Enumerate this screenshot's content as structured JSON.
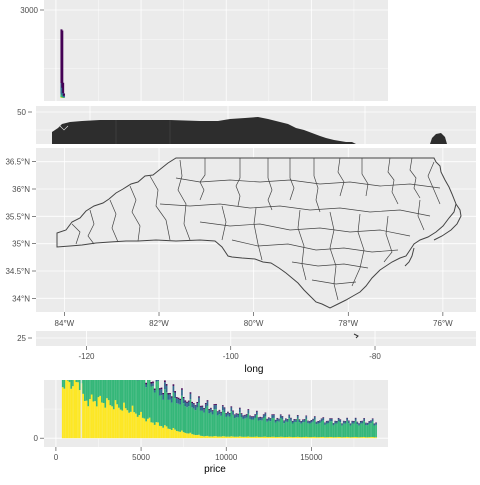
{
  "chart_data": [
    {
      "type": "bar",
      "y_ticks": [
        3000
      ],
      "bins": [
        {
          "x": 325,
          "counts": [
            30,
            110,
            370,
            1830
          ]
        },
        {
          "x": 375,
          "counts": [
            20,
            80,
            250,
            1950
          ]
        },
        {
          "x": 425,
          "counts": [
            10,
            40,
            120,
            350
          ]
        },
        {
          "x": 475,
          "counts": [
            5,
            20,
            50,
            80
          ]
        }
      ],
      "xlim": [
        -700,
        19500
      ],
      "ylim": [
        0,
        3000
      ],
      "colors": [
        "#fde725",
        "#35b779",
        "#31688e",
        "#440154"
      ],
      "grid": true
    },
    {
      "type": "map",
      "y_ticks": [
        50
      ],
      "ylim": [
        44,
        52
      ],
      "grid": true
    },
    {
      "type": "map",
      "x_ticks": [
        "84°W",
        "82°W",
        "80°W",
        "78°W",
        "76°W"
      ],
      "y_ticks": [
        "36.5°N",
        "36°N",
        "35.5°N",
        "35°N",
        "34.5°N",
        "34°N"
      ],
      "x_tick_values": [
        -84,
        -82,
        -80,
        -78,
        -76
      ],
      "y_tick_values": [
        36.5,
        36,
        35.5,
        35,
        34.5,
        34
      ],
      "xlim": [
        -84.6,
        -75.3
      ],
      "ylim": [
        33.75,
        36.75
      ],
      "grid": true
    },
    {
      "type": "map",
      "x_ticks": [
        "-120",
        "-100",
        "-80"
      ],
      "x_tick_values": [
        -120,
        -100,
        -80
      ],
      "y_ticks": [
        25
      ],
      "xlabel": "long",
      "xlim": [
        -127,
        -66
      ],
      "ylim": [
        24,
        29
      ],
      "grid": true
    },
    {
      "type": "bar",
      "x_ticks": [
        "0",
        "5000",
        "10000",
        "15000"
      ],
      "x_tick_values": [
        0,
        5000,
        10000,
        15000
      ],
      "y_ticks": [
        "0"
      ],
      "xlabel": "price",
      "xlim": [
        -700,
        19500
      ],
      "ylim": [
        -20,
        200
      ],
      "colors": [
        "#fde725",
        "#35b779",
        "#31688e",
        "#440154"
      ],
      "grid": true
    }
  ]
}
